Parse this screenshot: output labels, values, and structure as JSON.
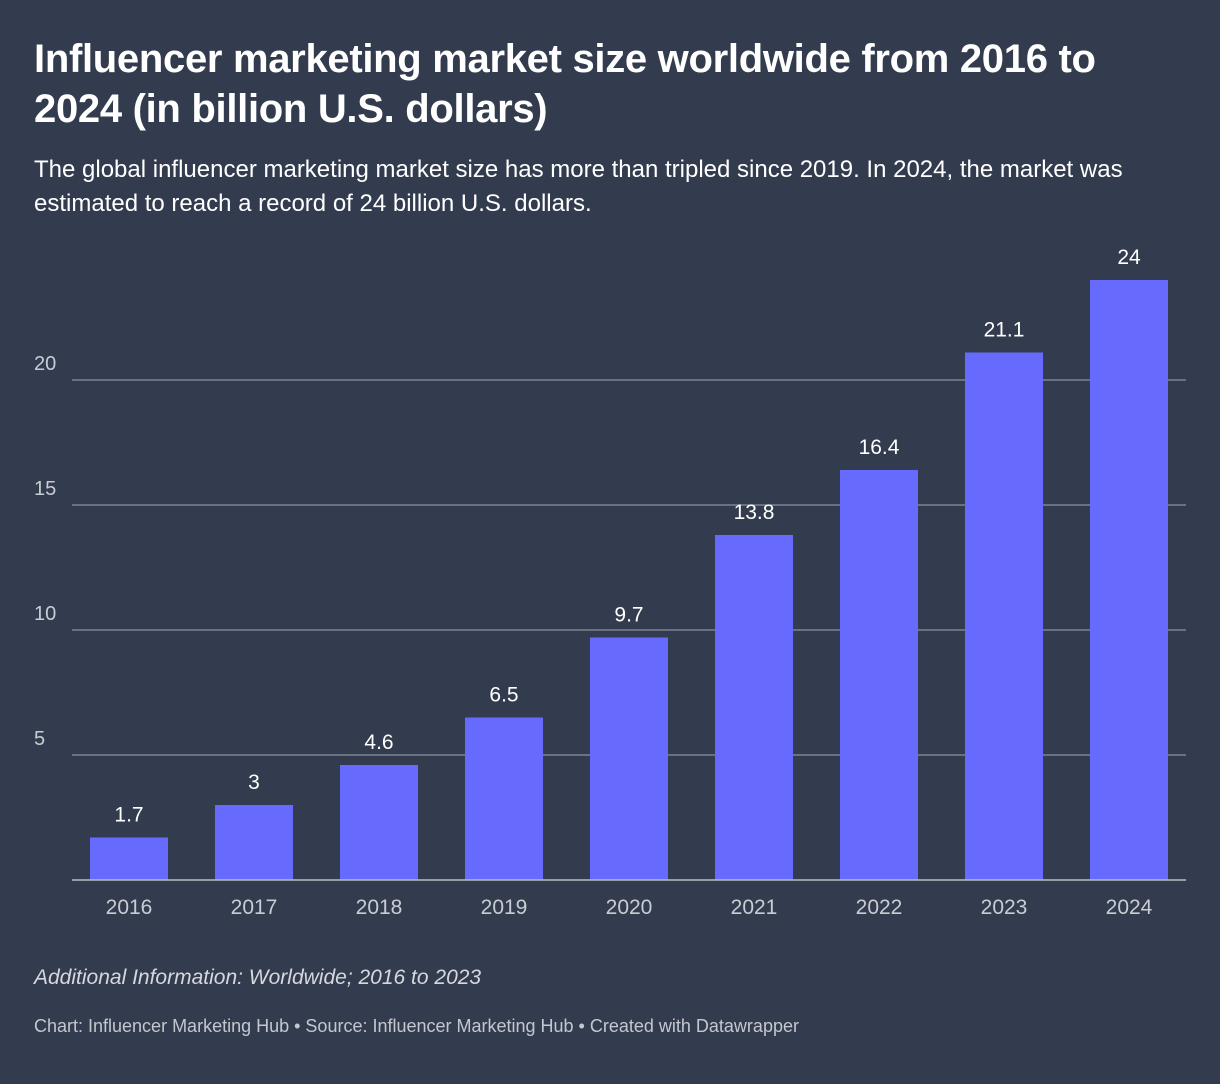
{
  "header": {
    "title": "Influencer marketing market size worldwide from 2016 to 2024 (in billion U.S. dollars)",
    "subtitle": "The global influencer marketing market size has more than tripled since 2019. In 2024, the market was estimated to reach a record of 24 billion U.S. dollars."
  },
  "footer": {
    "note": "Additional Information: Worldwide; 2016 to 2023",
    "credits": "Chart: Influencer Marketing Hub • Source: Influencer Marketing Hub • Created with Datawrapper"
  },
  "colors": {
    "background": "#333c4e",
    "bar": "#676bfd",
    "grid": "#8b919e",
    "axis_text": "#c9ccd3",
    "label_text": "#ffffff"
  },
  "chart_data": {
    "type": "bar",
    "categories": [
      "2016",
      "2017",
      "2018",
      "2019",
      "2020",
      "2021",
      "2022",
      "2023",
      "2024"
    ],
    "values": [
      1.7,
      3,
      4.6,
      6.5,
      9.7,
      13.8,
      16.4,
      21.1,
      24
    ],
    "data_labels": [
      "1.7",
      "3",
      "4.6",
      "6.5",
      "9.7",
      "13.8",
      "16.4",
      "21.1",
      "24"
    ],
    "y_ticks": [
      5,
      10,
      15,
      20
    ],
    "ylim": [
      0,
      24
    ],
    "grid": true,
    "legend": "none"
  }
}
